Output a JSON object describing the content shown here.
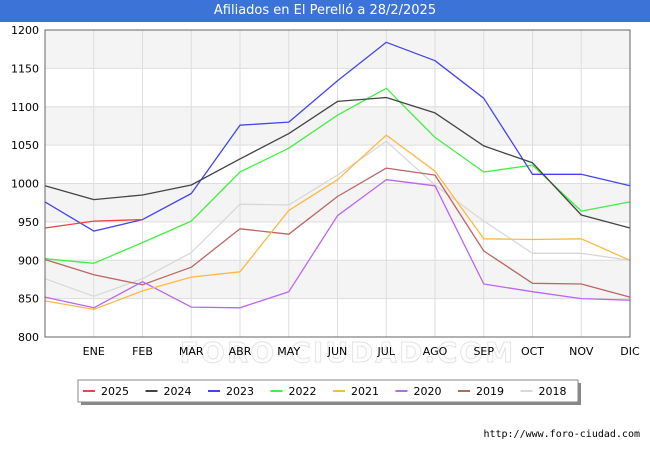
{
  "chart_data": {
    "type": "line",
    "title": "Afiliados en El Perelló a 28/2/2025",
    "xlabel": "",
    "ylabel": "",
    "categories": [
      "",
      "ENE",
      "FEB",
      "MAR",
      "ABR",
      "MAY",
      "JUN",
      "JUL",
      "AGO",
      "SEP",
      "OCT",
      "NOV",
      "DIC"
    ],
    "ylim": [
      800,
      1200
    ],
    "yticks": [
      800,
      850,
      900,
      950,
      1000,
      1050,
      1100,
      1150,
      1200
    ],
    "grid": true,
    "legend_position": "bottom",
    "watermark": "FORO-CIUDAD.COM",
    "series": [
      {
        "name": "2025",
        "color": "#ee4444",
        "values": [
          942,
          951,
          953,
          null,
          null,
          null,
          null,
          null,
          null,
          null,
          null,
          null,
          null
        ]
      },
      {
        "name": "2024",
        "color": "#444444",
        "values": [
          997,
          979,
          985,
          998,
          1032,
          1065,
          1107,
          1112,
          1092,
          1049,
          1027,
          959,
          942
        ]
      },
      {
        "name": "2023",
        "color": "#4444ee",
        "values": [
          976,
          938,
          953,
          987,
          1076,
          1080,
          1134,
          1184,
          1160,
          1111,
          1012,
          1012,
          997
        ]
      },
      {
        "name": "2022",
        "color": "#44ee44",
        "values": [
          902,
          896,
          923,
          951,
          1015,
          1046,
          1089,
          1124,
          1060,
          1015,
          1024,
          964,
          976
        ]
      },
      {
        "name": "2021",
        "color": "#ffb844",
        "values": [
          847,
          836,
          860,
          878,
          885,
          965,
          1005,
          1063,
          1016,
          928,
          927,
          928,
          900
        ]
      },
      {
        "name": "2020",
        "color": "#bb66ee",
        "values": [
          852,
          838,
          872,
          839,
          838,
          859,
          958,
          1005,
          997,
          869,
          859,
          850,
          848
        ]
      },
      {
        "name": "2019",
        "color": "#bb6666",
        "values": [
          901,
          881,
          868,
          891,
          941,
          934,
          983,
          1020,
          1011,
          912,
          870,
          869,
          852
        ]
      },
      {
        "name": "2018",
        "color": "#d8d8d8",
        "values": [
          876,
          853,
          876,
          910,
          973,
          972,
          1011,
          1055,
          998,
          951,
          909,
          909,
          900
        ]
      }
    ]
  },
  "source_text": "http://www.foro-ciudad.com"
}
